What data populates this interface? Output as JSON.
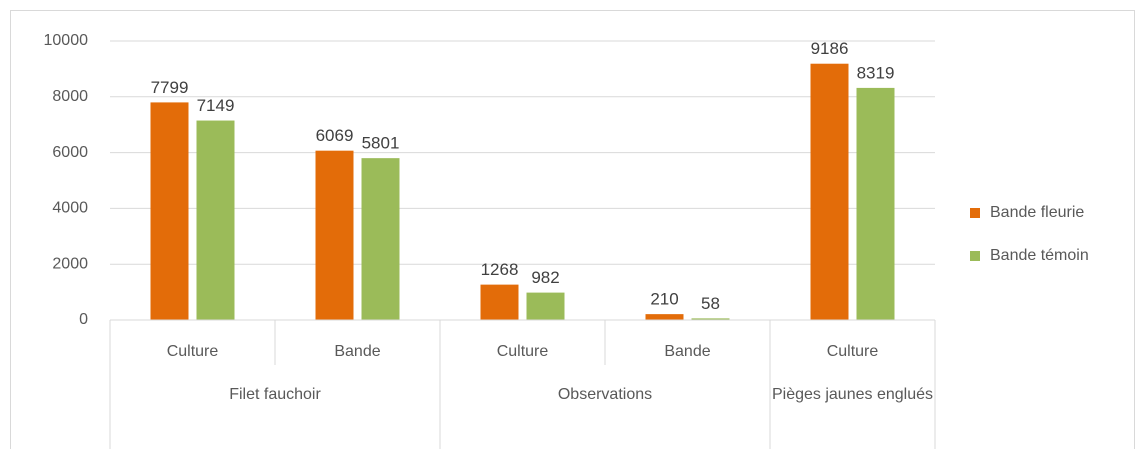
{
  "chart_data": {
    "type": "bar",
    "categories": [
      "Culture",
      "Bande",
      "Culture",
      "Bande",
      "Culture"
    ],
    "category_groups": [
      "Filet fauchoir",
      "Filet fauchoir",
      "Observations",
      "Observations",
      "Pièges jaunes englués"
    ],
    "series": [
      {
        "name": "Bande fleurie",
        "color": "#e36c09",
        "values": [
          7799,
          6069,
          1268,
          210,
          9186
        ]
      },
      {
        "name": "Bande témoin",
        "color": "#9bbb59",
        "values": [
          7149,
          5801,
          982,
          58,
          8319
        ]
      }
    ],
    "ylim": [
      0,
      10000
    ],
    "yticks": [
      0,
      2000,
      4000,
      6000,
      8000,
      10000
    ],
    "grid": true,
    "legend": "right"
  }
}
